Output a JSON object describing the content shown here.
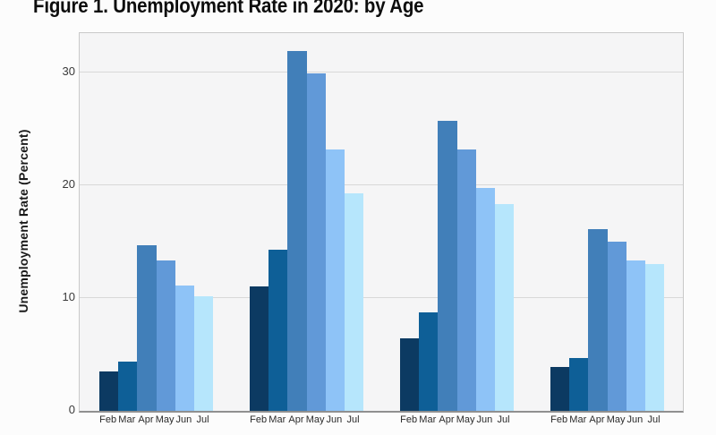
{
  "chart_data": {
    "type": "bar",
    "title": "Figure 1. Unemployment Rate in 2020: by Age",
    "ylabel": "Unemployment Rate (Percent)",
    "xlabel": "",
    "months": [
      "Feb",
      "Mar",
      "Apr",
      "May",
      "Jun",
      "Jul"
    ],
    "yticks": [
      0,
      10,
      20,
      30
    ],
    "ylim": [
      0,
      33.5
    ],
    "grid": true,
    "legend": false,
    "bar_colors": [
      "#0c3a62",
      "#0e5f97",
      "#417fb9",
      "#6199d8",
      "#8ec3f7",
      "#b6e6fc"
    ],
    "groups": [
      {
        "values": [
          3.5,
          4.4,
          14.7,
          13.3,
          11.1,
          10.2
        ]
      },
      {
        "values": [
          11.0,
          14.3,
          31.9,
          29.9,
          23.2,
          19.3
        ]
      },
      {
        "values": [
          6.4,
          8.7,
          25.7,
          23.2,
          19.8,
          18.3
        ]
      },
      {
        "values": [
          3.9,
          4.7,
          16.1,
          15.0,
          13.3,
          13.0
        ]
      }
    ],
    "colors": {
      "figure_bg": "#fcfcfc",
      "panel_bg": "#f5f5f6",
      "gridline": "#d8d8d8",
      "panel_border": "#c9c9c9",
      "axis_line": "#909090",
      "title_color": "#0d0d0d",
      "tick_color": "#3a3a3a"
    }
  }
}
